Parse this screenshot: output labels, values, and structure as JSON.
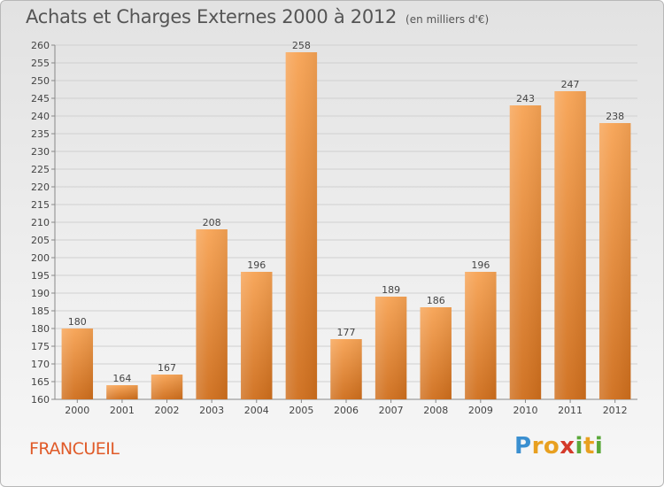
{
  "header": {
    "title": "Achats et Charges Externes 2000 à 2012",
    "unit": "(en milliers d'€)"
  },
  "commune": "FRANCUEIL",
  "logo": {
    "text": "Proxiti",
    "letters": [
      {
        "ch": "P",
        "color": "#3a8fd0"
      },
      {
        "ch": "r",
        "color": "#e8a020"
      },
      {
        "ch": "o",
        "color": "#e8a020"
      },
      {
        "ch": "x",
        "color": "#d43a2a"
      },
      {
        "ch": "i",
        "color": "#5aa83a"
      },
      {
        "ch": "t",
        "color": "#e8a020"
      },
      {
        "ch": "i",
        "color": "#5aa83a"
      }
    ]
  },
  "colors": {
    "bar_top": "#f7a354",
    "bar_bottom": "#cf6e1c",
    "grid": "#d0d0d0",
    "text": "#444444",
    "commune": "#e05a28"
  },
  "chart_data": {
    "type": "bar",
    "title": "Achats et Charges Externes 2000 à 2012",
    "subtitle": "(en milliers d'€)",
    "xlabel": "",
    "ylabel": "",
    "categories": [
      "2000",
      "2001",
      "2002",
      "2003",
      "2004",
      "2005",
      "2006",
      "2007",
      "2008",
      "2009",
      "2010",
      "2011",
      "2012"
    ],
    "values": [
      180,
      164,
      167,
      208,
      196,
      258,
      177,
      189,
      186,
      196,
      243,
      247,
      238
    ],
    "ylim": [
      160,
      260
    ],
    "ytick_step": 5,
    "yticks": [
      "160",
      "165",
      "170",
      "175",
      "180",
      "185",
      "190",
      "195",
      "200",
      "205",
      "210",
      "215",
      "220",
      "225",
      "230",
      "235",
      "240",
      "245",
      "250",
      "255",
      "260"
    ],
    "data_labels": [
      "180",
      "164",
      "167",
      "208",
      "196",
      "258",
      "177",
      "189",
      "186",
      "196",
      "243",
      "247",
      "238"
    ],
    "grid": true,
    "legend": "none"
  }
}
